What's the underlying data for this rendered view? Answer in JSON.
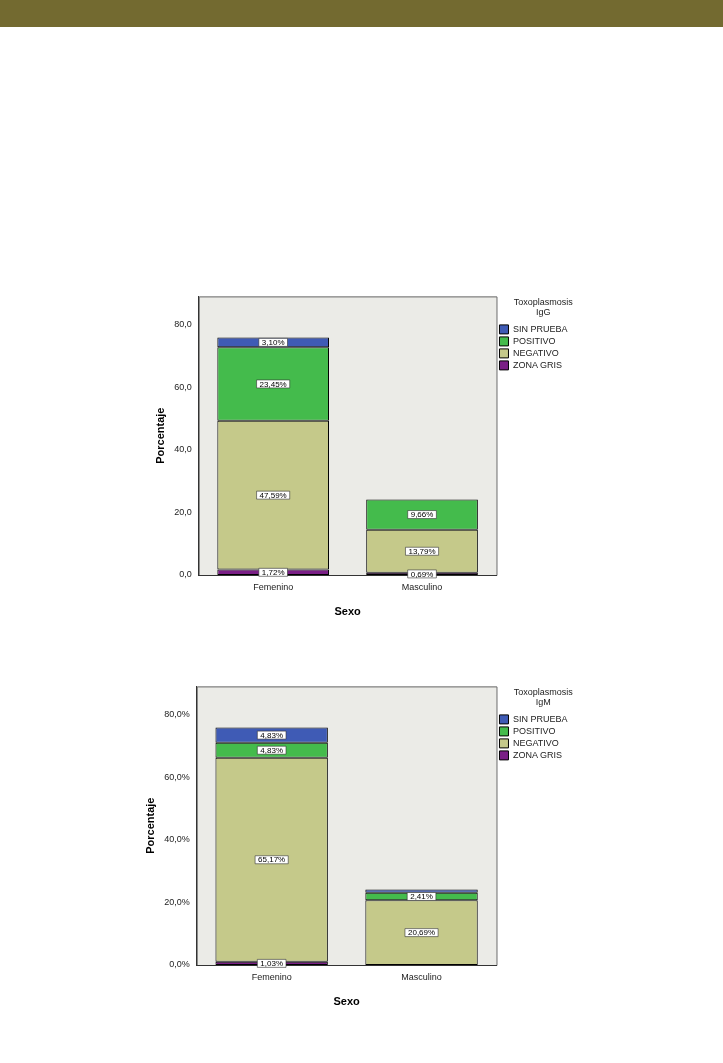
{
  "chart_data": [
    {
      "type": "bar",
      "stacked": true,
      "xlabel": "Sexo",
      "ylabel": "Porcentaje",
      "legend_title": "Toxoplasmosis IgG",
      "legend": "top right",
      "grid": false,
      "categories": [
        "Femenino",
        "Masculino"
      ],
      "ylim": [
        0,
        89
      ],
      "yticks": [
        {
          "value": 0,
          "label": "0,0"
        },
        {
          "value": 20,
          "label": "20,0"
        },
        {
          "value": 40,
          "label": "40,0"
        },
        {
          "value": 60,
          "label": "60,0"
        },
        {
          "value": 80,
          "label": "80,0"
        }
      ],
      "series": [
        {
          "name": "ZONA GRIS",
          "color": "#7a1f86",
          "values": [
            1.72,
            0.69
          ],
          "value_labels": [
            "1,72%",
            "0,69%"
          ]
        },
        {
          "name": "NEGATIVO",
          "color": "#c5c98a",
          "values": [
            47.59,
            13.79
          ],
          "value_labels": [
            "47,59%",
            "13,79%"
          ]
        },
        {
          "name": "POSITIVO",
          "color": "#44bb4c",
          "values": [
            23.45,
            9.66
          ],
          "value_labels": [
            "23,45%",
            "9,66%"
          ]
        },
        {
          "name": "SIN PRUEBA",
          "color": "#3f5bb5",
          "values": [
            3.1,
            null
          ],
          "value_labels": [
            "3,10%",
            null
          ]
        }
      ]
    },
    {
      "type": "bar",
      "stacked": true,
      "xlabel": "Sexo",
      "ylabel": "Porcentaje",
      "legend_title": "Toxoplasmosis IgM",
      "legend": "top right",
      "grid": false,
      "categories": [
        "Femenino",
        "Masculino"
      ],
      "ylim": [
        0,
        89
      ],
      "yticks": [
        {
          "value": 0,
          "label": "0,0%"
        },
        {
          "value": 20,
          "label": "20,0%"
        },
        {
          "value": 40,
          "label": "40,0%"
        },
        {
          "value": 60,
          "label": "60,0%"
        },
        {
          "value": 80,
          "label": "80,0%"
        }
      ],
      "series": [
        {
          "name": "ZONA GRIS",
          "color": "#7a1f86",
          "values": [
            1.03,
            null
          ],
          "value_labels": [
            "1,03%",
            null
          ]
        },
        {
          "name": "NEGATIVO",
          "color": "#c5c98a",
          "values": [
            65.17,
            20.69
          ],
          "value_labels": [
            "65,17%",
            "20,69%"
          ]
        },
        {
          "name": "POSITIVO",
          "color": "#44bb4c",
          "values": [
            4.83,
            2.41
          ],
          "value_labels": [
            "4,83%",
            "2,41%"
          ]
        },
        {
          "name": "SIN PRUEBA",
          "color": "#3f5bb5",
          "values": [
            4.83,
            1.0
          ],
          "value_labels": [
            "4,83%",
            null
          ]
        }
      ]
    }
  ]
}
